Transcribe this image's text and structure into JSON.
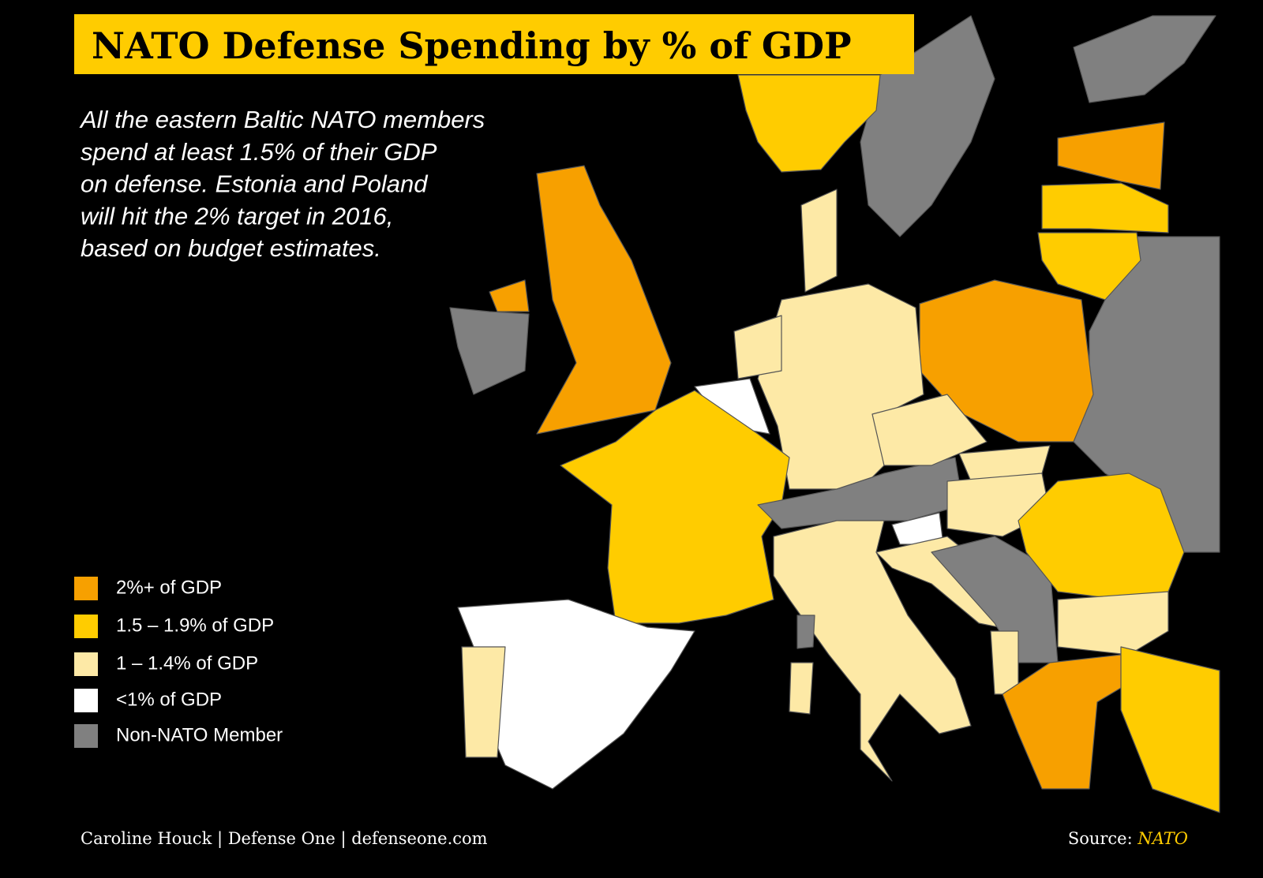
{
  "header": {
    "title": "NATO Defense Spending by % of GDP"
  },
  "summary": {
    "lines": [
      "All the eastern Baltic NATO members",
      "spend at least 1.5% of their GDP",
      "on defense. Estonia and Poland",
      "will hit the 2% target in 2016,",
      "based on budget estimates."
    ]
  },
  "legend": {
    "items": [
      {
        "label": "2%+ of GDP",
        "color": "#F7A000"
      },
      {
        "label": "1.5 – 1.9% of GDP",
        "color": "#FFCC00"
      },
      {
        "label": "1 – 1.4% of GDP",
        "color": "#FDE9A6"
      },
      {
        "label": "<1% of GDP",
        "color": "#FFFFFF"
      },
      {
        "label": "Non-NATO Member",
        "color": "#808080"
      }
    ]
  },
  "footer": {
    "credit": "Caroline Houck | Defense One | defenseone.com",
    "source_label": "Source:",
    "source_name": "NATO"
  }
}
